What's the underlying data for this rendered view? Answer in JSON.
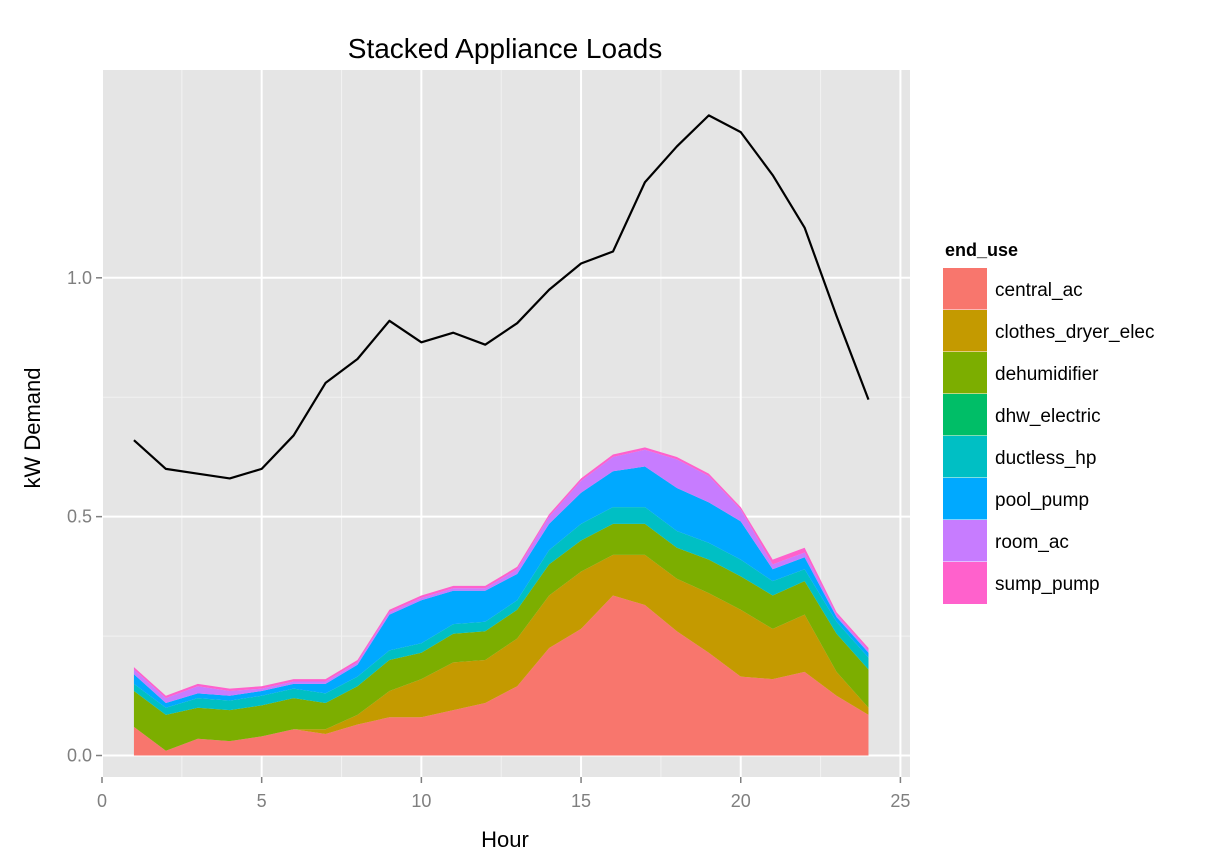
{
  "chart_data": {
    "type": "area",
    "stacked": true,
    "title": "Stacked Appliance Loads",
    "xlabel": "Hour",
    "ylabel": "kW Demand",
    "xlim": [
      0,
      25.3
    ],
    "ylim": [
      -0.045,
      1.435
    ],
    "x_ticks": [
      0,
      5,
      10,
      15,
      20,
      25
    ],
    "x_tick_labels": [
      "0",
      "5",
      "10",
      "15",
      "20",
      "25"
    ],
    "y_ticks": [
      0.0,
      0.5,
      1.0
    ],
    "y_tick_labels": [
      "0.0",
      "0.5",
      "1.0"
    ],
    "grid": true,
    "legend_position": "right",
    "legend_title": "end_use",
    "x": [
      1,
      2,
      3,
      4,
      5,
      6,
      7,
      8,
      9,
      10,
      11,
      12,
      13,
      14,
      15,
      16,
      17,
      18,
      19,
      20,
      21,
      22,
      23,
      24
    ],
    "series": [
      {
        "name": "central_ac",
        "color": "#F8766D",
        "values": [
          0.06,
          0.01,
          0.035,
          0.03,
          0.04,
          0.055,
          0.045,
          0.065,
          0.08,
          0.08,
          0.095,
          0.11,
          0.145,
          0.225,
          0.265,
          0.335,
          0.315,
          0.26,
          0.215,
          0.165,
          0.16,
          0.175,
          0.125,
          0.085
        ]
      },
      {
        "name": "clothes_dryer_elec",
        "color": "#C49A00",
        "values": [
          0.0,
          0.0,
          0.0,
          0.0,
          0.0,
          0.0,
          0.01,
          0.02,
          0.055,
          0.08,
          0.1,
          0.09,
          0.1,
          0.11,
          0.12,
          0.085,
          0.105,
          0.11,
          0.125,
          0.14,
          0.105,
          0.12,
          0.05,
          0.015
        ]
      },
      {
        "name": "dehumidifier",
        "color": "#7CAE00",
        "values": [
          0.075,
          0.075,
          0.065,
          0.065,
          0.065,
          0.065,
          0.055,
          0.06,
          0.065,
          0.055,
          0.06,
          0.06,
          0.06,
          0.065,
          0.065,
          0.065,
          0.065,
          0.065,
          0.07,
          0.07,
          0.07,
          0.07,
          0.08,
          0.08
        ]
      },
      {
        "name": "dhw_electric",
        "color": "#00BE67",
        "values": [
          0.0,
          0.0,
          0.0,
          0.0,
          0.0,
          0.0,
          0.0,
          0.0,
          0.0,
          0.0,
          0.0,
          0.0,
          0.0,
          0.0,
          0.0,
          0.0,
          0.0,
          0.0,
          0.0,
          0.0,
          0.0,
          0.0,
          0.0,
          0.0
        ]
      },
      {
        "name": "ductless_hp",
        "color": "#00BFC4",
        "values": [
          0.015,
          0.015,
          0.02,
          0.02,
          0.02,
          0.02,
          0.02,
          0.02,
          0.02,
          0.02,
          0.02,
          0.02,
          0.02,
          0.03,
          0.035,
          0.035,
          0.035,
          0.035,
          0.035,
          0.035,
          0.03,
          0.025,
          0.025,
          0.025
        ]
      },
      {
        "name": "pool_pump",
        "color": "#00A9FF",
        "values": [
          0.02,
          0.01,
          0.01,
          0.01,
          0.01,
          0.01,
          0.02,
          0.025,
          0.075,
          0.09,
          0.07,
          0.065,
          0.055,
          0.055,
          0.065,
          0.075,
          0.085,
          0.09,
          0.085,
          0.08,
          0.025,
          0.025,
          0.01,
          0.01
        ]
      },
      {
        "name": "room_ac",
        "color": "#C77CFF",
        "values": [
          0.01,
          0.01,
          0.015,
          0.01,
          0.005,
          0.005,
          0.005,
          0.005,
          0.005,
          0.005,
          0.005,
          0.005,
          0.01,
          0.015,
          0.025,
          0.03,
          0.035,
          0.06,
          0.055,
          0.025,
          0.01,
          0.01,
          0.005,
          0.005
        ]
      },
      {
        "name": "sump_pump",
        "color": "#FF61CC",
        "values": [
          0.005,
          0.005,
          0.005,
          0.005,
          0.005,
          0.005,
          0.005,
          0.005,
          0.005,
          0.005,
          0.005,
          0.005,
          0.005,
          0.005,
          0.005,
          0.005,
          0.005,
          0.005,
          0.005,
          0.005,
          0.01,
          0.01,
          0.005,
          0.005
        ]
      }
    ],
    "total_line": {
      "color": "#000000",
      "values": [
        0.66,
        0.6,
        0.59,
        0.58,
        0.6,
        0.67,
        0.78,
        0.83,
        0.91,
        0.865,
        0.885,
        0.86,
        0.905,
        0.975,
        1.03,
        1.055,
        1.2,
        1.275,
        1.34,
        1.305,
        1.215,
        1.105,
        0.92,
        0.745
      ]
    }
  }
}
